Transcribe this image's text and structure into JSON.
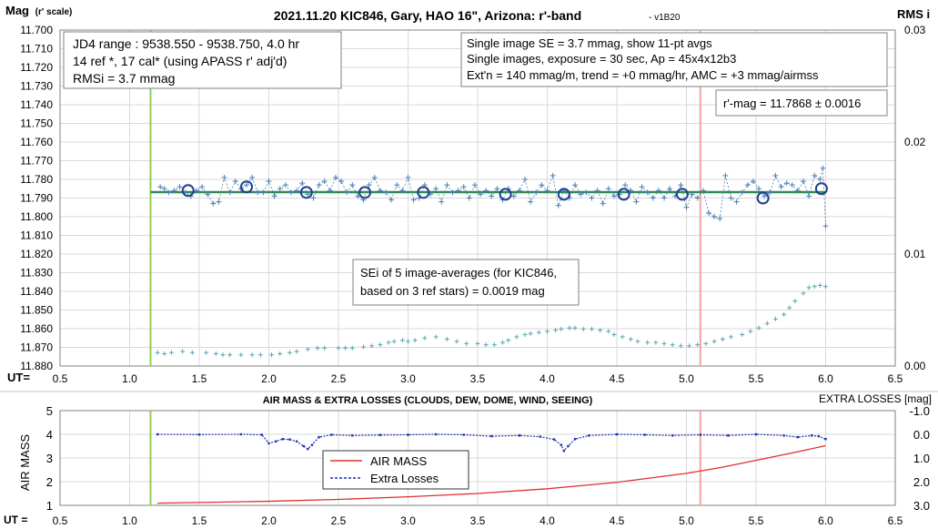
{
  "chart_data": [
    {
      "type": "scatter",
      "title": "2021.11.20 KIC846, Gary, HAO 16\", Arizona: r'-band",
      "title_suffix": "- v1B20",
      "ylabel_main": "Mag",
      "ylabel_sub": "(r' scale)",
      "y2label": "RMS i",
      "xlabel": "UT=",
      "xlim": [
        0.5,
        6.5
      ],
      "ylim": [
        11.7,
        11.88
      ],
      "y_reversed": true,
      "y2lim": [
        0.0,
        0.03
      ],
      "x_ticks": [
        "0.5",
        "1.0",
        "1.5",
        "2.0",
        "2.5",
        "3.0",
        "3.5",
        "4.0",
        "4.5",
        "5.0",
        "5.5",
        "6.0",
        "6.5"
      ],
      "y_ticks": [
        "11.700",
        "11.710",
        "11.720",
        "11.730",
        "11.740",
        "11.750",
        "11.760",
        "11.770",
        "11.780",
        "11.790",
        "11.800",
        "11.810",
        "11.820",
        "11.830",
        "11.840",
        "11.850",
        "11.860",
        "11.870",
        "11.880"
      ],
      "y2_ticks": [
        "0.03",
        "0.02",
        "0.01",
        "0.00"
      ],
      "grid": true,
      "vertical_markers": [
        {
          "x": 1.15,
          "color": "#8fd14f"
        },
        {
          "x": 5.1,
          "color": "#f5a3a3"
        }
      ],
      "fit_line": {
        "x": [
          1.15,
          6.0
        ],
        "y": [
          11.7868,
          11.7868
        ],
        "color": "#2e8b57"
      },
      "annotations": {
        "info_left": [
          "JD4 range : 9538.550 - 9538.750,  4.0  hr",
          "14 ref *, 17 cal* (using APASS r' adj'd)",
          "RMSi = 3.7 mmag"
        ],
        "info_right": [
          "Single image SE = 3.7 mmag, show  11-pt avgs",
          "Single images, exposure = 30 sec, Ap = 45x4x12b3",
          "Ext'n = 140 mmag/m, trend = +0  mmag/hr, AMC = +3 mmag/airmss"
        ],
        "result": "r'-mag = 11.7868 ± 0.0016",
        "sei": [
          "SEi of 5 image-averages (for KIC846,",
          "based on 3 ref stars) = 0.0019 mag"
        ]
      },
      "series": [
        {
          "marker": "plus",
          "color": "#4a7fb5",
          "dashed": true,
          "x": [
            1.22,
            1.25,
            1.28,
            1.32,
            1.36,
            1.4,
            1.44,
            1.48,
            1.52,
            1.56,
            1.6,
            1.64,
            1.68,
            1.72,
            1.76,
            1.8,
            1.84,
            1.88,
            1.92,
            1.96,
            2.0,
            2.04,
            2.08,
            2.12,
            2.16,
            2.2,
            2.24,
            2.28,
            2.32,
            2.36,
            2.4,
            2.44,
            2.48,
            2.52,
            2.56,
            2.6,
            2.64,
            2.68,
            2.72,
            2.76,
            2.8,
            2.84,
            2.88,
            2.92,
            2.96,
            3.0,
            3.04,
            3.08,
            3.12,
            3.16,
            3.2,
            3.24,
            3.28,
            3.32,
            3.36,
            3.4,
            3.44,
            3.48,
            3.52,
            3.56,
            3.6,
            3.64,
            3.68,
            3.72,
            3.76,
            3.8,
            3.84,
            3.88,
            3.92,
            3.96,
            4.0,
            4.04,
            4.08,
            4.12,
            4.16,
            4.2,
            4.24,
            4.28,
            4.32,
            4.36,
            4.4,
            4.44,
            4.48,
            4.52,
            4.56,
            4.6,
            4.64,
            4.68,
            4.72,
            4.76,
            4.8,
            4.84,
            4.88,
            4.92,
            4.96,
            5.0,
            5.04,
            5.08,
            5.12,
            5.16,
            5.2,
            5.24,
            5.28,
            5.32,
            5.36,
            5.4,
            5.44,
            5.48,
            5.52,
            5.56,
            5.6,
            5.64,
            5.68,
            5.72,
            5.76,
            5.8,
            5.84,
            5.88,
            5.92,
            5.96,
            5.98,
            6.0
          ],
          "y": [
            11.784,
            11.785,
            11.787,
            11.786,
            11.784,
            11.787,
            11.789,
            11.786,
            11.784,
            11.788,
            11.793,
            11.792,
            11.779,
            11.787,
            11.781,
            11.785,
            11.783,
            11.779,
            11.787,
            11.787,
            11.781,
            11.789,
            11.785,
            11.783,
            11.787,
            11.786,
            11.782,
            11.788,
            11.79,
            11.783,
            11.781,
            11.786,
            11.779,
            11.781,
            11.787,
            11.783,
            11.789,
            11.791,
            11.783,
            11.779,
            11.786,
            11.787,
            11.791,
            11.783,
            11.786,
            11.779,
            11.791,
            11.79,
            11.783,
            11.788,
            11.785,
            11.792,
            11.783,
            11.787,
            11.786,
            11.784,
            11.79,
            11.783,
            11.788,
            11.786,
            11.789,
            11.785,
            11.791,
            11.785,
            11.789,
            11.786,
            11.78,
            11.792,
            11.787,
            11.783,
            11.786,
            11.778,
            11.794,
            11.786,
            11.79,
            11.783,
            11.788,
            11.787,
            11.79,
            11.786,
            11.793,
            11.785,
            11.789,
            11.788,
            11.783,
            11.786,
            11.792,
            11.784,
            11.787,
            11.79,
            11.786,
            11.79,
            11.785,
            11.789,
            11.783,
            11.795,
            11.788,
            11.79,
            11.786,
            11.798,
            11.8,
            11.801,
            11.778,
            11.79,
            11.792,
            11.787,
            11.783,
            11.781,
            11.785,
            11.789,
            11.787,
            11.778,
            11.784,
            11.782,
            11.783,
            11.786,
            11.781,
            11.789,
            11.778,
            11.78,
            11.774,
            11.805
          ]
        },
        {
          "marker": "circle",
          "color": "#1f3f8f",
          "x": [
            1.42,
            1.84,
            2.27,
            2.69,
            3.11,
            3.7,
            4.12,
            4.55,
            4.97,
            5.55,
            5.97
          ],
          "y": [
            11.786,
            11.784,
            11.787,
            11.787,
            11.787,
            11.788,
            11.788,
            11.788,
            11.788,
            11.79,
            11.785
          ]
        },
        {
          "marker": "plus",
          "color": "#5aa6b0",
          "axis": "y2",
          "x": [
            1.2,
            1.25,
            1.3,
            1.38,
            1.45,
            1.55,
            1.62,
            1.67,
            1.72,
            1.8,
            1.88,
            1.94,
            2.02,
            2.08,
            2.15,
            2.2,
            2.28,
            2.35,
            2.4,
            2.5,
            2.55,
            2.6,
            2.68,
            2.74,
            2.8,
            2.86,
            2.9,
            2.96,
            3.0,
            3.05,
            3.12,
            3.2,
            3.28,
            3.35,
            3.42,
            3.5,
            3.56,
            3.62,
            3.68,
            3.72,
            3.78,
            3.84,
            3.88,
            3.94,
            4.0,
            4.06,
            4.1,
            4.16,
            4.2,
            4.26,
            4.32,
            4.38,
            4.44,
            4.48,
            4.54,
            4.6,
            4.65,
            4.72,
            4.78,
            4.84,
            4.9,
            4.96,
            5.02,
            5.08,
            5.14,
            5.2,
            5.26,
            5.32,
            5.4,
            5.46,
            5.52,
            5.58,
            5.64,
            5.7,
            5.74,
            5.78,
            5.84,
            5.88,
            5.92,
            5.96,
            6.0
          ],
          "y": [
            0.0012,
            0.0011,
            0.0012,
            0.0013,
            0.0012,
            0.0012,
            0.0011,
            0.001,
            0.001,
            0.001,
            0.001,
            0.001,
            0.001,
            0.0011,
            0.0012,
            0.0013,
            0.0015,
            0.0016,
            0.0016,
            0.0016,
            0.0016,
            0.0016,
            0.0017,
            0.0018,
            0.0019,
            0.0021,
            0.0022,
            0.0023,
            0.0022,
            0.0023,
            0.0025,
            0.0026,
            0.0024,
            0.0022,
            0.002,
            0.002,
            0.0019,
            0.0019,
            0.0021,
            0.0023,
            0.0026,
            0.0028,
            0.0029,
            0.003,
            0.0031,
            0.0032,
            0.0033,
            0.0034,
            0.0034,
            0.0033,
            0.0033,
            0.0032,
            0.0031,
            0.0028,
            0.0026,
            0.0024,
            0.0022,
            0.0021,
            0.0021,
            0.002,
            0.0019,
            0.0018,
            0.0018,
            0.0019,
            0.002,
            0.0022,
            0.0024,
            0.0026,
            0.0028,
            0.0031,
            0.0034,
            0.0038,
            0.0042,
            0.0046,
            0.0052,
            0.0058,
            0.0065,
            0.007,
            0.0071,
            0.0072,
            0.0071
          ]
        }
      ]
    },
    {
      "type": "line",
      "title": "AIR MASS & EXTRA LOSSES (CLOUDS, DEW, DOME, WIND, SEEING)",
      "ylabel": "AIR MASS",
      "y2label": "EXTRA LOSSES [mag]",
      "xlabel": "UT =",
      "xlim": [
        0.5,
        6.5
      ],
      "ylim": [
        1,
        5
      ],
      "y2lim": [
        -1.0,
        3.0
      ],
      "y2_reversed": true,
      "x_ticks": [
        "0.5",
        "1.0",
        "1.5",
        "2.0",
        "2.5",
        "3.0",
        "3.5",
        "4.0",
        "4.5",
        "5.0",
        "5.5",
        "6.0",
        "6.5"
      ],
      "y_ticks": [
        "1",
        "2",
        "3",
        "4",
        "5"
      ],
      "y2_ticks": [
        "-1.0",
        "0.0",
        "1.0",
        "2.0",
        "3.0"
      ],
      "grid": true,
      "legend": {
        "position": "center",
        "entries": [
          "AIR MASS",
          "Extra Losses"
        ]
      },
      "vertical_markers": [
        {
          "x": 1.15,
          "color": "#8fd14f"
        },
        {
          "x": 5.1,
          "color": "#f5a3a3"
        }
      ],
      "series": [
        {
          "name": "AIR MASS",
          "color": "#e03030",
          "x": [
            1.2,
            1.5,
            2.0,
            2.5,
            3.0,
            3.5,
            4.0,
            4.5,
            5.0,
            5.25,
            5.5,
            5.75,
            6.0
          ],
          "y": [
            1.09,
            1.12,
            1.17,
            1.25,
            1.36,
            1.5,
            1.7,
            1.97,
            2.35,
            2.6,
            2.9,
            3.2,
            3.52
          ]
        },
        {
          "name": "Extra Losses",
          "color": "#2030b0",
          "dashed": true,
          "axis": "y2",
          "x": [
            1.2,
            1.5,
            1.8,
            1.95,
            2.0,
            2.05,
            2.1,
            2.15,
            2.2,
            2.25,
            2.28,
            2.31,
            2.36,
            2.45,
            2.6,
            2.8,
            3.0,
            3.2,
            3.4,
            3.6,
            3.8,
            3.95,
            4.05,
            4.1,
            4.12,
            4.15,
            4.2,
            4.3,
            4.5,
            4.7,
            4.9,
            5.1,
            5.3,
            5.5,
            5.7,
            5.8,
            5.9,
            5.95,
            6.0
          ],
          "y": [
            0.0,
            0.01,
            0.0,
            0.02,
            0.38,
            0.3,
            0.2,
            0.22,
            0.3,
            0.5,
            0.62,
            0.45,
            0.12,
            0.02,
            0.05,
            0.03,
            0.02,
            0.0,
            0.02,
            0.08,
            0.05,
            0.1,
            0.22,
            0.45,
            0.7,
            0.5,
            0.2,
            0.05,
            0.0,
            0.02,
            0.05,
            0.02,
            0.05,
            0.0,
            0.05,
            0.12,
            0.05,
            0.08,
            0.2
          ]
        }
      ]
    }
  ]
}
